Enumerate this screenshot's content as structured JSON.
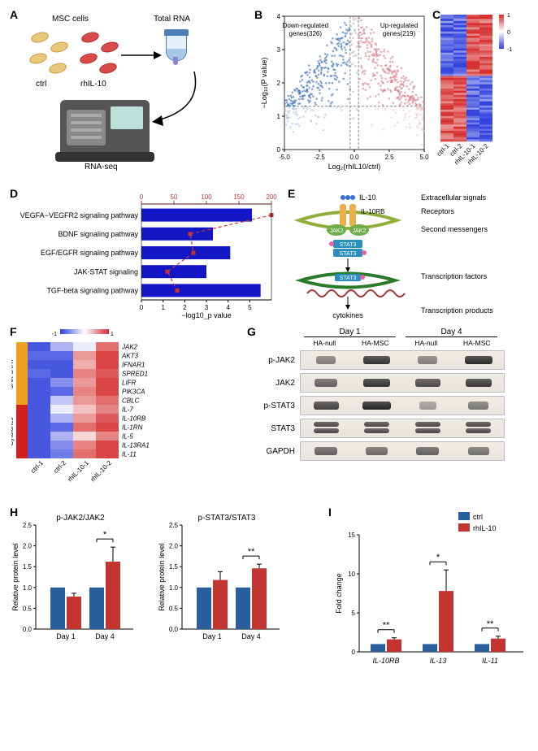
{
  "labels": {
    "A": "A",
    "B": "B",
    "C": "C",
    "D": "D",
    "E": "E",
    "F": "F",
    "G": "G",
    "H": "H",
    "I": "I"
  },
  "colors": {
    "ctrl_bar": "#2a5f9e",
    "rhil10_bar": "#c23531",
    "volcano_down": "#3b6fb6",
    "volcano_up": "#d77b8a",
    "volcano_ns": "#b0b0b0",
    "heat_low": "#3344dd",
    "heat_high": "#d63030",
    "heat_mid": "#ffffff",
    "pathway_bar": "#1316c5",
    "pathway_line": "#c23531",
    "jak_color": "#6fae4a",
    "stat_color": "#2a8fbd",
    "receptor": "#e8b04a",
    "dna": "#a33b3b",
    "catF_jak": "#f0a020",
    "catF_cyto": "#d02020"
  },
  "A": {
    "msc": "MSC cells",
    "totalrna": "Total RNA",
    "ctrl": "ctrl",
    "rhil10": "rhIL-10",
    "rnaseq": "RNA-seq"
  },
  "B": {
    "xlabel": "Log₂(rhIL10/ctrl)",
    "ylabel": "−Log₁₀(P value)",
    "down_label": "Down-regulated\ngenes(326)",
    "up_label": "Up-regulated\ngenes(219)",
    "xlim": [
      -5,
      5
    ],
    "ylim": [
      0,
      4
    ],
    "xticks": [
      -5,
      -2.5,
      0,
      2.5,
      5
    ],
    "yticks": [
      0,
      1,
      2,
      3,
      4
    ],
    "pcut_y": 1.3,
    "fc_cut": 0.3
  },
  "C": {
    "samples": [
      "ctrl-1",
      "ctrl-2",
      "rhIL-10-1",
      "rhIL-10-2"
    ],
    "scale": [
      -1,
      0,
      1
    ],
    "rows": 60
  },
  "D": {
    "pathways": [
      "VEGFA−VEGFR2 signaling pathway",
      "BDNF signaling pathway",
      "EGF/EGFR signaling pathway",
      "JAK-STAT signaling",
      "TGF-beta signaling pathway"
    ],
    "bar_values": [
      5.1,
      3.3,
      4.1,
      3.0,
      5.5
    ],
    "line_values": [
      200,
      75,
      80,
      40,
      55
    ],
    "x_bottom_label": "−log10_p value",
    "bottom_ticks": [
      0,
      1,
      2,
      3,
      4,
      5
    ],
    "top_ticks": [
      0,
      50,
      100,
      150,
      200
    ]
  },
  "E": {
    "il10": "IL-10",
    "il10rb": "IL-10RB",
    "jak2": "JAK2",
    "stat3": "STAT3",
    "cytokines": "cytokines",
    "rows": [
      "Extracellular signals",
      "Receptors",
      "Second messengers",
      "Transcription factors",
      "Transcription products"
    ]
  },
  "F": {
    "samples": [
      "ctrl-1",
      "ctrl-2",
      "rhIL-10-1",
      "rhIL-10-2"
    ],
    "scale": [
      -1,
      1
    ],
    "cat_jak": "JAK-STAT\npathway",
    "cat_cyto": "Cytokines",
    "genes": [
      "JAK2",
      "AKT3",
      "IFNAR1",
      "SPRED1",
      "LIFR",
      "PIK3CA",
      "CBLC",
      "IL-7",
      "IL-10RB",
      "IL-1RN",
      "IL-5",
      "IL-13RA1",
      "IL-11"
    ],
    "values": [
      [
        -0.9,
        -0.4,
        -0.1,
        0.7
      ],
      [
        -0.8,
        -0.8,
        0.5,
        0.9
      ],
      [
        -0.9,
        -0.9,
        0.4,
        0.9
      ],
      [
        -0.8,
        -0.9,
        0.6,
        0.8
      ],
      [
        -0.9,
        -0.6,
        0.5,
        0.9
      ],
      [
        -0.9,
        -0.8,
        0.6,
        0.9
      ],
      [
        -0.9,
        -0.3,
        0.5,
        0.7
      ],
      [
        -0.9,
        -0.1,
        0.3,
        0.6
      ],
      [
        -0.9,
        -0.4,
        0.5,
        0.8
      ],
      [
        -0.9,
        -0.8,
        0.7,
        0.9
      ],
      [
        -0.9,
        -0.4,
        0.2,
        0.6
      ],
      [
        -0.9,
        -0.6,
        0.6,
        0.9
      ],
      [
        -0.9,
        -0.7,
        0.7,
        0.9
      ]
    ]
  },
  "G": {
    "day1": "Day 1",
    "day4": "Day 4",
    "cols": [
      "HA-null",
      "HA-MSC",
      "HA-null",
      "HA-MSC"
    ],
    "rows": [
      "p-JAK2",
      "JAK2",
      "p-STAT3",
      "STAT3",
      "GAPDH"
    ],
    "bands": [
      [
        0.35,
        0.85,
        0.35,
        0.9
      ],
      [
        0.55,
        0.85,
        0.7,
        0.8
      ],
      [
        0.75,
        0.95,
        0.18,
        0.4
      ],
      [
        0.7,
        0.7,
        0.7,
        0.7
      ],
      [
        0.55,
        0.5,
        0.55,
        0.45
      ]
    ]
  },
  "H": {
    "title1": "p-JAK2/JAK2",
    "title2": "p-STAT3/STAT3",
    "ylabel": "Relative protein level",
    "groups": [
      "Day 1",
      "Day 4"
    ],
    "ylim": [
      0,
      2.5
    ],
    "yticks": [
      0,
      0.5,
      1.0,
      1.5,
      2.0,
      2.5
    ],
    "chart1": {
      "ctrl": [
        1.0,
        1.0
      ],
      "rh": [
        0.78,
        1.62
      ],
      "err": [
        0.08,
        0.35
      ],
      "sig": [
        "",
        "*"
      ]
    },
    "chart2": {
      "ctrl": [
        1.0,
        1.0
      ],
      "rh": [
        1.18,
        1.46
      ],
      "err": [
        0.2,
        0.1
      ],
      "sig": [
        "",
        "**"
      ]
    }
  },
  "I": {
    "ylabel": "Fold change",
    "legend": {
      "ctrl": "ctrl",
      "rh": "rhIL-10"
    },
    "genes": [
      "IL-10RB",
      "IL-13",
      "IL-11"
    ],
    "ylim": [
      0,
      15
    ],
    "yticks": [
      0,
      5,
      10,
      15
    ],
    "ctrl": [
      1,
      1,
      1
    ],
    "rh": [
      1.6,
      7.8,
      1.7
    ],
    "err": [
      0.2,
      2.7,
      0.3
    ],
    "sig": [
      "**",
      "*",
      "**"
    ]
  }
}
